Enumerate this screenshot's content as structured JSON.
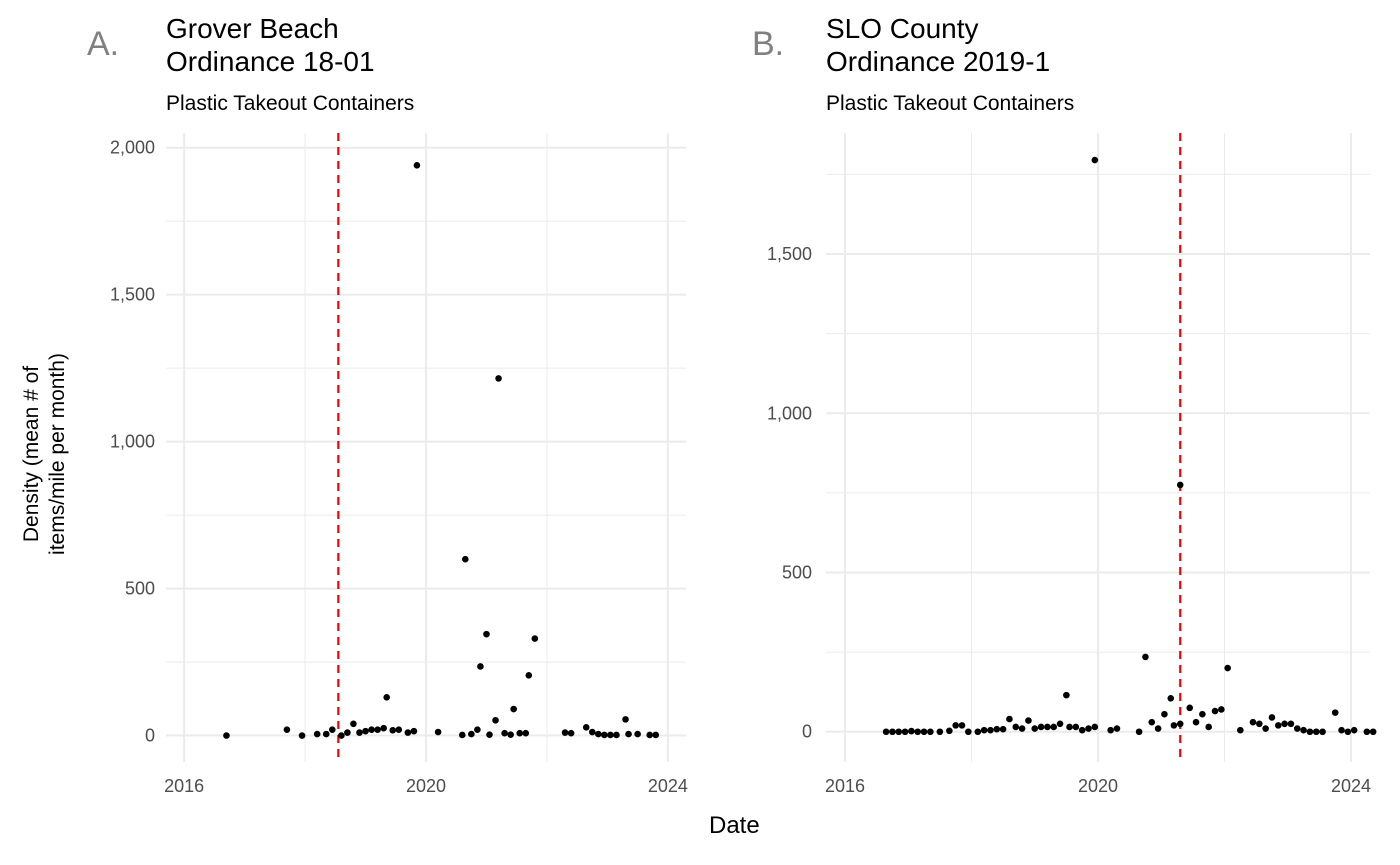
{
  "panels": [
    {
      "tag": "A.",
      "title_line1": "Grover Beach",
      "title_line2": "Ordinance 18-01",
      "subtitle": "Plastic Takeout Containers"
    },
    {
      "tag": "B.",
      "title_line1": "SLO County",
      "title_line2": "Ordinance 2019-1",
      "subtitle": "Plastic Takeout Containers"
    }
  ],
  "shared_axes": {
    "ylabel_line1": "Density (mean # of",
    "ylabel_line2": "items/mile per month)",
    "xlabel": "Date"
  },
  "colors": {
    "points": "#000000",
    "ordinance_line": "#ff0000",
    "grid": "#ebebeb"
  },
  "chart_data": [
    {
      "type": "scatter",
      "tag": "A.",
      "title": "Grover Beach\nOrdinance 18-01",
      "subtitle": "Plastic Takeout Containers",
      "xlabel": "Date",
      "ylabel": "Density (mean # of items/mile per month)",
      "xlim": [
        2015.7,
        2024.3
      ],
      "ylim": [
        -90,
        2050
      ],
      "x_ticks": [
        2016,
        2020,
        2024
      ],
      "x_tick_labels": [
        "2016",
        "2020",
        "2024"
      ],
      "y_ticks": [
        0,
        500,
        1000,
        1500,
        2000
      ],
      "y_tick_labels": [
        "0",
        "500",
        "1,000",
        "1,500",
        "2,000"
      ],
      "reference_line_x": 2018.55,
      "grid": true,
      "points": [
        [
          2016.7,
          0
        ],
        [
          2017.7,
          20
        ],
        [
          2017.95,
          0
        ],
        [
          2018.2,
          5
        ],
        [
          2018.35,
          5
        ],
        [
          2018.45,
          20
        ],
        [
          2018.6,
          0
        ],
        [
          2018.7,
          10
        ],
        [
          2018.8,
          40
        ],
        [
          2018.9,
          10
        ],
        [
          2019.0,
          15
        ],
        [
          2019.1,
          20
        ],
        [
          2019.2,
          20
        ],
        [
          2019.3,
          25
        ],
        [
          2019.35,
          130
        ],
        [
          2019.45,
          18
        ],
        [
          2019.55,
          20
        ],
        [
          2019.7,
          10
        ],
        [
          2019.8,
          15
        ],
        [
          2019.85,
          1940
        ],
        [
          2020.2,
          12
        ],
        [
          2020.6,
          2
        ],
        [
          2020.65,
          600
        ],
        [
          2020.75,
          5
        ],
        [
          2020.85,
          20
        ],
        [
          2020.9,
          235
        ],
        [
          2021.0,
          345
        ],
        [
          2021.05,
          3
        ],
        [
          2021.15,
          52
        ],
        [
          2021.2,
          1215
        ],
        [
          2021.3,
          8
        ],
        [
          2021.4,
          3
        ],
        [
          2021.45,
          90
        ],
        [
          2021.55,
          8
        ],
        [
          2021.65,
          8
        ],
        [
          2021.7,
          205
        ],
        [
          2021.8,
          330
        ],
        [
          2022.3,
          10
        ],
        [
          2022.4,
          8
        ],
        [
          2022.65,
          28
        ],
        [
          2022.75,
          12
        ],
        [
          2022.85,
          5
        ],
        [
          2022.95,
          2
        ],
        [
          2023.05,
          2
        ],
        [
          2023.15,
          2
        ],
        [
          2023.3,
          55
        ],
        [
          2023.35,
          5
        ],
        [
          2023.5,
          5
        ],
        [
          2023.7,
          2
        ],
        [
          2023.8,
          2
        ]
      ]
    },
    {
      "type": "scatter",
      "tag": "B.",
      "title": "SLO County\nOrdinance 2019-1",
      "subtitle": "Plastic Takeout Containers",
      "xlabel": "Date",
      "ylabel": "Density (mean # of items/mile per month)",
      "xlim": [
        2015.7,
        2024.3
      ],
      "ylim": [
        -95,
        1880
      ],
      "x_ticks": [
        2016,
        2020,
        2024
      ],
      "x_tick_labels": [
        "2016",
        "2020",
        "2024"
      ],
      "y_ticks": [
        0,
        500,
        1000,
        1500
      ],
      "y_tick_labels": [
        "0",
        "500",
        "1,000",
        "1,500"
      ],
      "reference_line_x": 2021.3,
      "grid": true,
      "points": [
        [
          2016.65,
          0
        ],
        [
          2016.75,
          0
        ],
        [
          2016.85,
          0
        ],
        [
          2016.95,
          0
        ],
        [
          2017.05,
          2
        ],
        [
          2017.15,
          0
        ],
        [
          2017.25,
          0
        ],
        [
          2017.35,
          0
        ],
        [
          2017.5,
          0
        ],
        [
          2017.65,
          3
        ],
        [
          2017.75,
          20
        ],
        [
          2017.85,
          20
        ],
        [
          2017.95,
          0
        ],
        [
          2018.1,
          0
        ],
        [
          2018.2,
          5
        ],
        [
          2018.3,
          5
        ],
        [
          2018.4,
          8
        ],
        [
          2018.5,
          8
        ],
        [
          2018.6,
          40
        ],
        [
          2018.7,
          15
        ],
        [
          2018.8,
          10
        ],
        [
          2018.9,
          35
        ],
        [
          2019.0,
          10
        ],
        [
          2019.1,
          15
        ],
        [
          2019.2,
          15
        ],
        [
          2019.3,
          15
        ],
        [
          2019.4,
          25
        ],
        [
          2019.5,
          115
        ],
        [
          2019.55,
          15
        ],
        [
          2019.65,
          15
        ],
        [
          2019.75,
          5
        ],
        [
          2019.85,
          10
        ],
        [
          2019.95,
          15
        ],
        [
          2019.95,
          1795
        ],
        [
          2020.2,
          5
        ],
        [
          2020.3,
          10
        ],
        [
          2020.65,
          0
        ],
        [
          2020.75,
          235
        ],
        [
          2020.85,
          30
        ],
        [
          2020.95,
          10
        ],
        [
          2021.05,
          55
        ],
        [
          2021.15,
          105
        ],
        [
          2021.2,
          20
        ],
        [
          2021.3,
          25
        ],
        [
          2021.3,
          775
        ],
        [
          2021.45,
          75
        ],
        [
          2021.55,
          30
        ],
        [
          2021.65,
          55
        ],
        [
          2021.75,
          15
        ],
        [
          2021.85,
          65
        ],
        [
          2021.95,
          70
        ],
        [
          2022.05,
          200
        ],
        [
          2022.25,
          5
        ],
        [
          2022.45,
          30
        ],
        [
          2022.55,
          25
        ],
        [
          2022.65,
          10
        ],
        [
          2022.75,
          45
        ],
        [
          2022.85,
          20
        ],
        [
          2022.95,
          25
        ],
        [
          2023.05,
          25
        ],
        [
          2023.15,
          10
        ],
        [
          2023.25,
          5
        ],
        [
          2023.35,
          0
        ],
        [
          2023.45,
          0
        ],
        [
          2023.55,
          0
        ],
        [
          2023.75,
          60
        ],
        [
          2023.85,
          5
        ],
        [
          2023.95,
          0
        ],
        [
          2024.05,
          5
        ],
        [
          2024.25,
          0
        ],
        [
          2024.35,
          0
        ]
      ]
    }
  ]
}
